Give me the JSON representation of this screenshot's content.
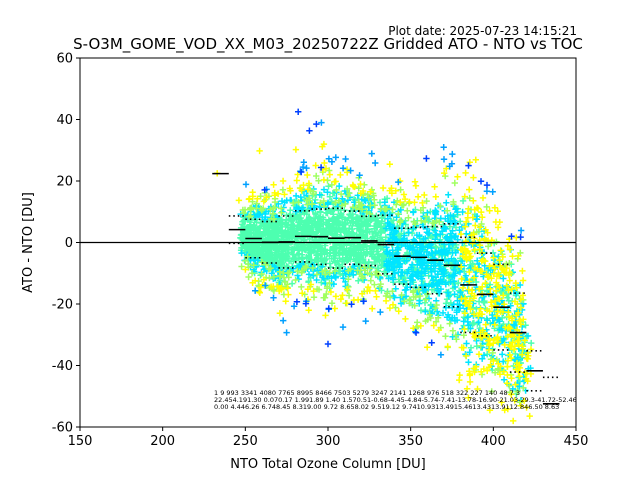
{
  "chart_data": {
    "type": "scatter",
    "title": "S-O3M_GOME_VOD_XX_M03_20250722Z Gridded ATO - NTO vs TOC",
    "plot_date": "Plot date: 2025-07-23 14:15:21",
    "xlabel": "NTO Total Ozone Column [DU]",
    "ylabel": "ATO - NTO [DU]",
    "xlim": [
      150,
      450
    ],
    "ylim": [
      -60,
      60
    ],
    "xticks": [
      "150",
      "200",
      "250",
      "300",
      "350",
      "400",
      "450"
    ],
    "yticks": [
      "60",
      "40",
      "20",
      "0",
      "-20",
      "-40",
      "-60"
    ],
    "grid": false,
    "zero_line": 0,
    "density_colors": [
      "#4dffb0",
      "#00e5ff",
      "#a0ff60",
      "#ffff00",
      "#00a0ff",
      "#0040ff"
    ],
    "bin_centers": [
      235,
      245,
      255,
      265,
      275,
      285,
      295,
      305,
      315,
      325,
      335,
      345,
      355,
      365,
      375,
      385,
      395,
      405,
      415,
      425,
      435
    ],
    "bin_mean": [
      22.4,
      4.19,
      1.3,
      0.07,
      0.17,
      1.99,
      1.89,
      1.4,
      1.57,
      0.51,
      -0.68,
      -4.45,
      -4.84,
      -5.74,
      -7.41,
      -13.78,
      -16.9,
      -21.03,
      -29.3,
      -41.72,
      -52.46
    ],
    "bin_std": [
      0.0,
      4.44,
      6.26,
      6.74,
      8.45,
      8.31,
      9.0,
      9.72,
      8.65,
      8.02,
      9.51,
      9.12,
      9.74,
      10.93,
      13.49,
      15.46,
      13.43,
      13.91,
      12.84,
      6.5,
      8.63
    ],
    "bin_counts": [
      "1",
      "9",
      "993",
      "3341",
      "4080",
      "7765",
      "8995",
      "8466",
      "7503",
      "5279",
      "3247",
      "2141",
      "1268",
      "976",
      "518",
      "322",
      "227",
      "140",
      "48",
      "7",
      "3"
    ],
    "stats_rows": {
      "counts": "1        9    993 3341 4080 7765 8995 8466 7503 5279 3247 2141 1268 976   518   322   227   140    48    7      3",
      "mean": "22.454.191.30 0.070.17 1.991.89 1.40 1.570.51-0.68-4.45-4.84-5.74-7.41-13.78-16.90-21.03-29.3-41.72-52.46",
      "std": "0.00 4.446.26 6.748.45 8.319.00 9.72 8.658.02 9.519.12 9.7410.9313.4915.4613.4313.9112.846.50 8.63"
    }
  }
}
